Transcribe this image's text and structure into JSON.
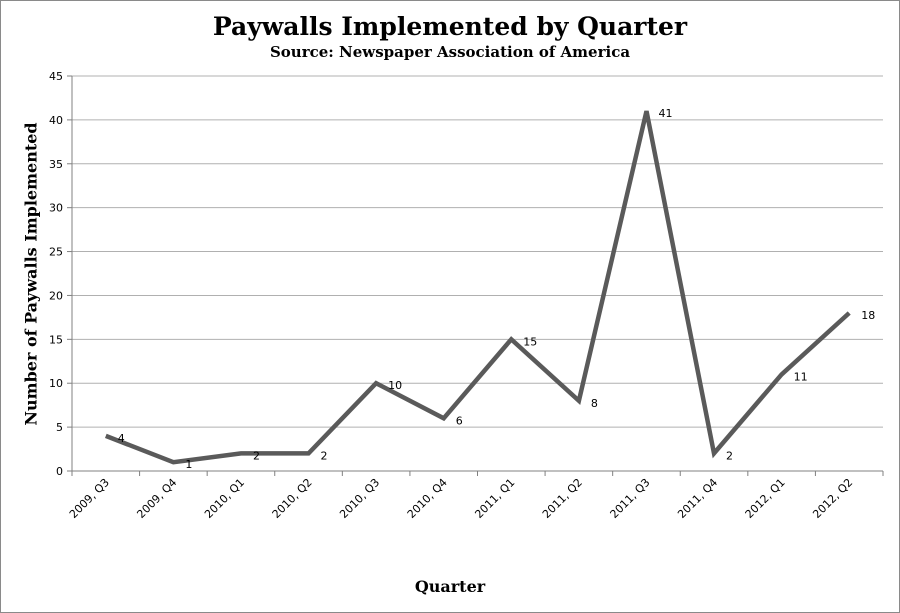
{
  "chart_data": {
    "type": "line",
    "title": "Paywalls Implemented by Quarter",
    "subtitle": "Source: Newspaper Association of America",
    "xlabel": "Quarter",
    "ylabel": "Number of Paywalls Implemented",
    "categories": [
      "2009, Q3",
      "2009, Q4",
      "2010, Q1",
      "2010, Q2",
      "2010, Q3",
      "2010, Q4",
      "2011, Q1",
      "2011, Q2",
      "2011, Q3",
      "2011, Q4",
      "2012, Q1",
      "2012, Q2"
    ],
    "series": [
      {
        "values": [
          4,
          1,
          2,
          2,
          10,
          6,
          15,
          8,
          41,
          2,
          11,
          18
        ]
      }
    ],
    "ylim": [
      0,
      45
    ],
    "yticks": [
      0,
      5,
      10,
      15,
      20,
      25,
      30,
      35,
      40,
      45
    ],
    "grid": true,
    "data_labels": true,
    "line_color": "#5a5a5a",
    "grid_color": "#b0b0b0"
  }
}
